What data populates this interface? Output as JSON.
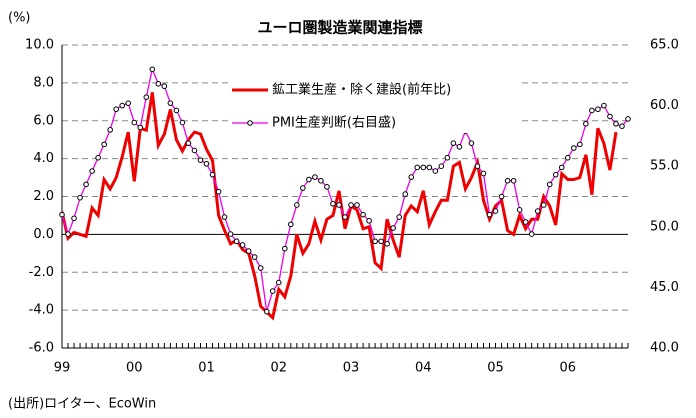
{
  "chart_data": {
    "type": "line",
    "title": "ユーロ圏製造業関連指標",
    "y_unit_label": "(%)",
    "source": "(出所)ロイター、EcoWin",
    "categories": [
      "99",
      null,
      null,
      null,
      null,
      null,
      null,
      null,
      null,
      null,
      null,
      null,
      "00",
      null,
      null,
      null,
      null,
      null,
      null,
      null,
      null,
      null,
      null,
      null,
      "01",
      null,
      null,
      null,
      null,
      null,
      null,
      null,
      null,
      null,
      null,
      null,
      "02",
      null,
      null,
      null,
      null,
      null,
      null,
      null,
      null,
      null,
      null,
      null,
      "03",
      null,
      null,
      null,
      null,
      null,
      null,
      null,
      null,
      null,
      null,
      null,
      "04",
      null,
      null,
      null,
      null,
      null,
      null,
      null,
      null,
      null,
      null,
      null,
      "05",
      null,
      null,
      null,
      null,
      null,
      null,
      null,
      null,
      null,
      null,
      null,
      "06",
      null,
      null,
      null,
      null,
      null,
      null,
      null,
      null,
      null,
      null
    ],
    "series": [
      {
        "name": "鉱工業生産・除く建設(前年比)",
        "color": "#ee0000",
        "axis": "y",
        "values": [
          1.2,
          -0.2,
          0.1,
          0.0,
          -0.1,
          1.4,
          1.0,
          2.9,
          2.4,
          3.0,
          4.1,
          5.4,
          2.8,
          5.6,
          5.5,
          7.5,
          4.7,
          5.3,
          6.6,
          5.0,
          4.4,
          5.0,
          5.4,
          5.3,
          4.5,
          3.9,
          1.0,
          0.2,
          -0.5,
          -0.3,
          -0.8,
          -1.0,
          -2.2,
          -3.8,
          -4.1,
          -4.4,
          -2.9,
          -3.3,
          -2.2,
          0.0,
          -1.0,
          -0.5,
          0.7,
          -0.3,
          0.8,
          1.0,
          2.3,
          0.3,
          1.5,
          1.3,
          0.3,
          0.4,
          -1.5,
          -1.8,
          0.8,
          -0.3,
          -1.2,
          1.0,
          1.5,
          1.2,
          2.3,
          0.5,
          1.2,
          1.8,
          1.8,
          3.6,
          3.8,
          2.4,
          3.0,
          3.8,
          1.8,
          0.8,
          1.5,
          1.8,
          0.2,
          0.0,
          1.0,
          0.3,
          0.8,
          0.8,
          2.0,
          1.5,
          0.5,
          3.2,
          2.9,
          2.9,
          3.0,
          4.2,
          2.1,
          5.6,
          4.8,
          3.4,
          5.4,
          null,
          null
        ]
      },
      {
        "name": "PMI生産判断(右目盛)",
        "color": "#ee00ee",
        "axis": "y2",
        "values": [
          51.0,
          49.4,
          50.7,
          52.4,
          53.5,
          54.6,
          55.7,
          56.8,
          58.0,
          59.7,
          60.0,
          60.2,
          58.6,
          58.2,
          60.7,
          63.0,
          61.8,
          61.6,
          60.2,
          59.6,
          58.6,
          56.9,
          56.3,
          55.5,
          55.2,
          54.3,
          52.9,
          50.8,
          49.4,
          48.8,
          48.5,
          48.0,
          47.5,
          46.6,
          43.0,
          44.7,
          45.4,
          48.2,
          50.2,
          51.8,
          53.2,
          53.9,
          54.1,
          53.8,
          53.3,
          51.9,
          51.8,
          50.8,
          51.8,
          51.8,
          51.0,
          50.5,
          48.8,
          48.8,
          48.6,
          49.9,
          50.8,
          52.7,
          54.1,
          54.9,
          54.9,
          54.9,
          54.6,
          55.0,
          55.7,
          56.9,
          56.6,
          57.9,
          56.9,
          55.0,
          54.4,
          51.0,
          51.3,
          52.5,
          53.8,
          53.8,
          51.4,
          50.4,
          49.4,
          51.3,
          51.8,
          53.5,
          54.3,
          54.9,
          55.7,
          56.5,
          56.8,
          58.5,
          59.6,
          59.7,
          60.0,
          59.1,
          58.5,
          58.3,
          58.9
        ]
      }
    ],
    "ylim": [
      -6,
      10
    ],
    "yticks": [
      {
        "value": -6,
        "label": "-6.0"
      },
      {
        "value": -4,
        "label": "-4.0"
      },
      {
        "value": -2,
        "label": "-2.0"
      },
      {
        "value": 0,
        "label": "0.0"
      },
      {
        "value": 2,
        "label": "2.0"
      },
      {
        "value": 4,
        "label": "4.0"
      },
      {
        "value": 6,
        "label": "6.0"
      },
      {
        "value": 8,
        "label": "8.0"
      },
      {
        "value": 10,
        "label": "10.0"
      }
    ],
    "y2lim": [
      40,
      65
    ],
    "y2ticks": [
      {
        "value": 40,
        "label": "40.0"
      },
      {
        "value": 45,
        "label": "45.0"
      },
      {
        "value": 50,
        "label": "50.0"
      },
      {
        "value": 55,
        "label": "55.0"
      },
      {
        "value": 60,
        "label": "60.0"
      },
      {
        "value": 65,
        "label": "65.0"
      }
    ],
    "grid": true,
    "legend": "top"
  }
}
